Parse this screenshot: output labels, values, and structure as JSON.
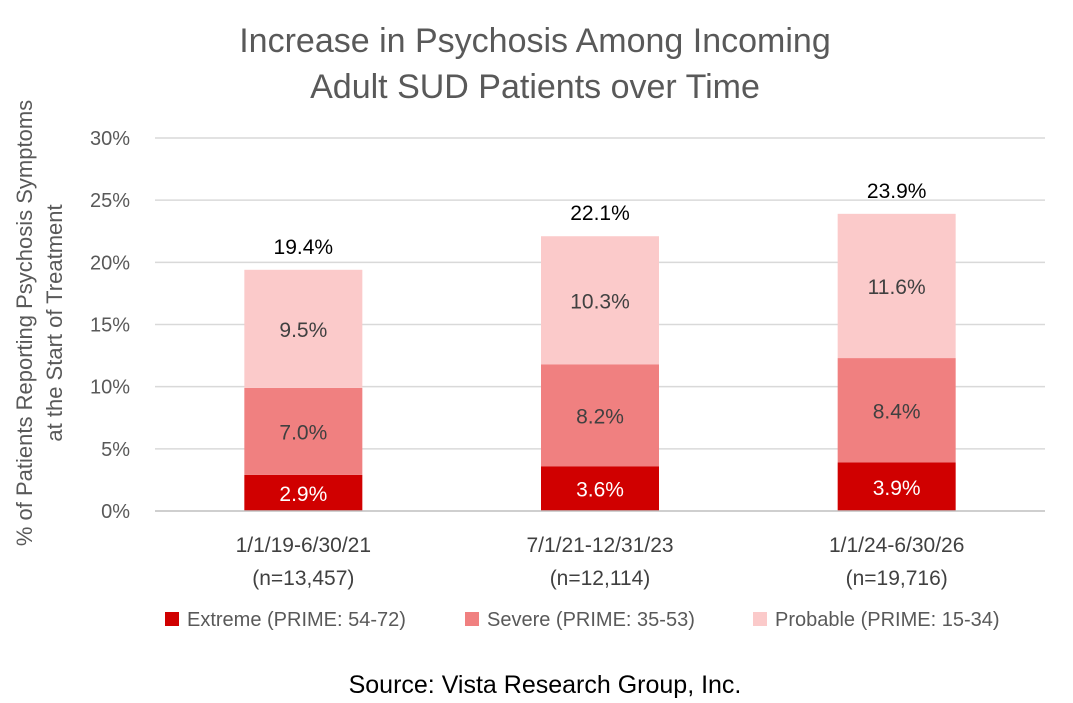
{
  "chart_data": {
    "type": "bar",
    "stacked": true,
    "title_lines": [
      "Increase in Psychosis Among Incoming",
      "Adult SUD Patients over Time"
    ],
    "ylabel_lines": [
      "% of Patients Reporting Psychosis Symptoms",
      "at the Start of Treatment"
    ],
    "xlabel": "",
    "ylim": [
      0,
      30
    ],
    "yticks": [
      0,
      5,
      10,
      15,
      20,
      25,
      30
    ],
    "ytick_labels": [
      "0%",
      "5%",
      "10%",
      "15%",
      "20%",
      "25%",
      "30%"
    ],
    "grid": true,
    "legend_position": "bottom",
    "categories": [
      [
        "1/1/19-6/30/21",
        "(n=13,457)"
      ],
      [
        "7/1/21-12/31/23",
        "(n=12,114)"
      ],
      [
        "1/1/24-6/30/26",
        "(n=19,716)"
      ]
    ],
    "series": [
      {
        "name": "Extreme (PRIME: 54-72)",
        "color": "#d00000",
        "label_color": "#ffffff",
        "values": [
          2.9,
          3.6,
          3.9
        ],
        "labels": [
          "2.9%",
          "3.6%",
          "3.9%"
        ]
      },
      {
        "name": "Severe (PRIME: 35-53)",
        "color": "#f08080",
        "label_color": "#404040",
        "values": [
          7.0,
          8.2,
          8.4
        ],
        "labels": [
          "7.0%",
          "8.2%",
          "8.4%"
        ]
      },
      {
        "name": "Probable (PRIME: 15-34)",
        "color": "#fbcaca",
        "label_color": "#404040",
        "values": [
          9.5,
          10.3,
          11.6
        ],
        "labels": [
          "9.5%",
          "10.3%",
          "11.6%"
        ]
      }
    ],
    "totals": [
      19.4,
      22.1,
      23.9
    ],
    "total_labels": [
      "19.4%",
      "22.1%",
      "23.9%"
    ],
    "source": "Source:  Vista Research Group, Inc."
  }
}
